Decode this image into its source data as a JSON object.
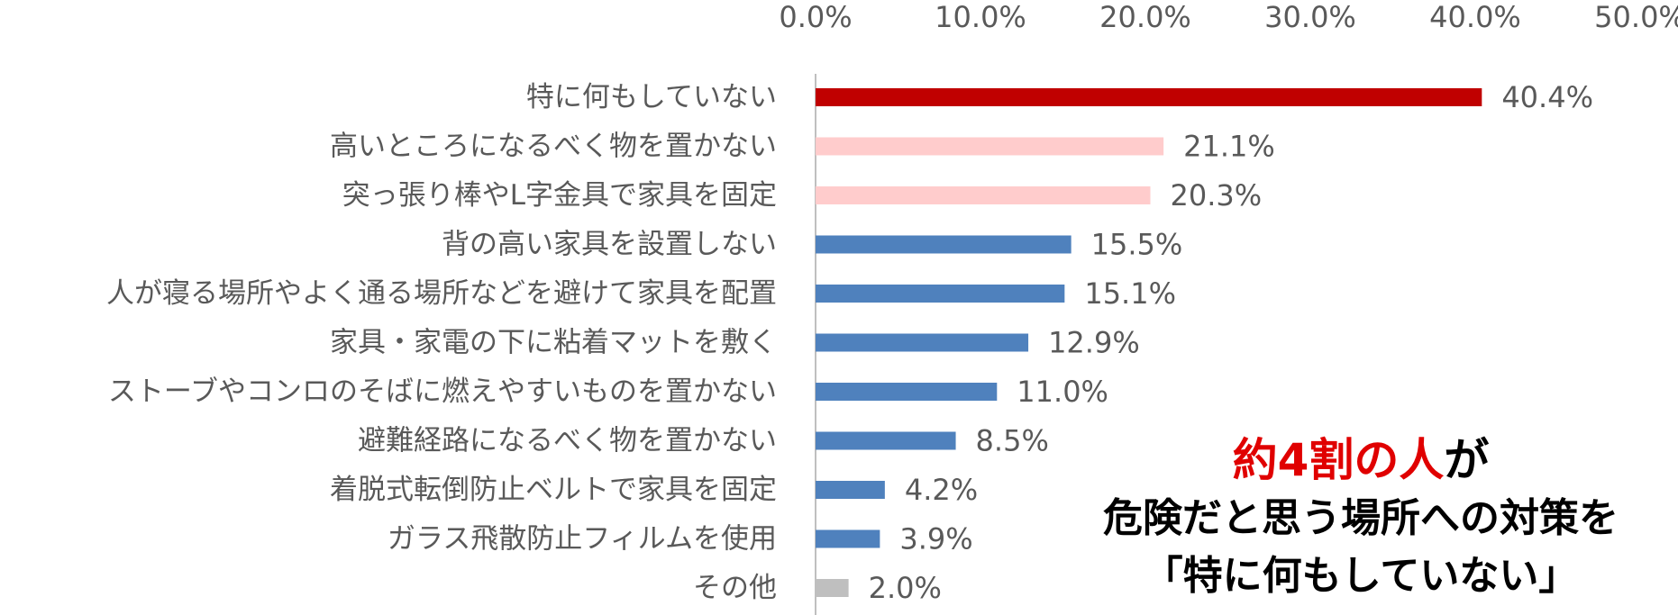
{
  "chart_data": {
    "type": "bar",
    "orientation": "horizontal",
    "categories": [
      "特に何もしていない",
      "高いところになるべく物を置かない",
      "突っ張り棒やL字金具で家具を固定",
      "背の高い家具を設置しない",
      "人が寝る場所やよく通る場所などを避けて家具を配置",
      "家具・家電の下に粘着マットを敷く",
      "ストーブやコンロのそばに燃えやすいものを置かない",
      "避難経路になるべく物を置かない",
      "着脱式転倒防止ベルトで家具を固定",
      "ガラス飛散防止フィルムを使用",
      "その他"
    ],
    "values": [
      40.4,
      21.1,
      20.3,
      15.5,
      15.1,
      12.9,
      11.0,
      8.5,
      4.2,
      3.9,
      2.0
    ],
    "value_labels": [
      "40.4%",
      "21.1%",
      "20.3%",
      "15.5%",
      "15.1%",
      "12.9%",
      "11.0%",
      "8.5%",
      "4.2%",
      "3.9%",
      "2.0%"
    ],
    "bar_colors": [
      "#c00000",
      "#ffcccc",
      "#ffcccc",
      "#4f81bd",
      "#4f81bd",
      "#4f81bd",
      "#4f81bd",
      "#4f81bd",
      "#4f81bd",
      "#4f81bd",
      "#bfbfbf"
    ],
    "xlim": [
      0,
      50
    ],
    "x_ticks": [
      0,
      10,
      20,
      30,
      40,
      50
    ],
    "x_tick_labels": [
      "0.0%",
      "10.0%",
      "20.0%",
      "30.0%",
      "40.0%",
      "50.0%"
    ],
    "axis_position": "top",
    "grid": false,
    "title": "",
    "xlabel": "",
    "ylabel": ""
  },
  "callout": {
    "line1_highlight": "約4割の人",
    "line1_rest": "が",
    "line2": "危険だと思う場所への対策を",
    "line3": "「特に何もしていない」"
  },
  "colors": {
    "axis": "#bfbfbf",
    "text": "#595959",
    "highlight": "#e00000"
  }
}
